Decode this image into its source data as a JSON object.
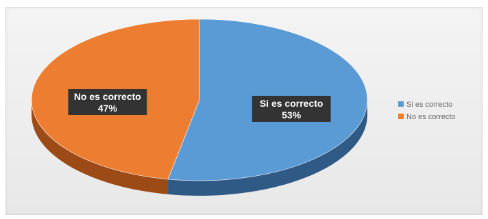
{
  "chart_data": {
    "type": "pie",
    "title": "",
    "is_3d": true,
    "legend_position": "right",
    "slices": [
      {
        "label": "Si es correcto",
        "percent": 53,
        "percent_label": "53%",
        "color": "#5B9BD5",
        "side_color": "#2F5A86"
      },
      {
        "label": "No es correcto",
        "percent": 47,
        "percent_label": "47%",
        "color": "#ED7D31",
        "side_color": "#9C4A16"
      }
    ]
  }
}
